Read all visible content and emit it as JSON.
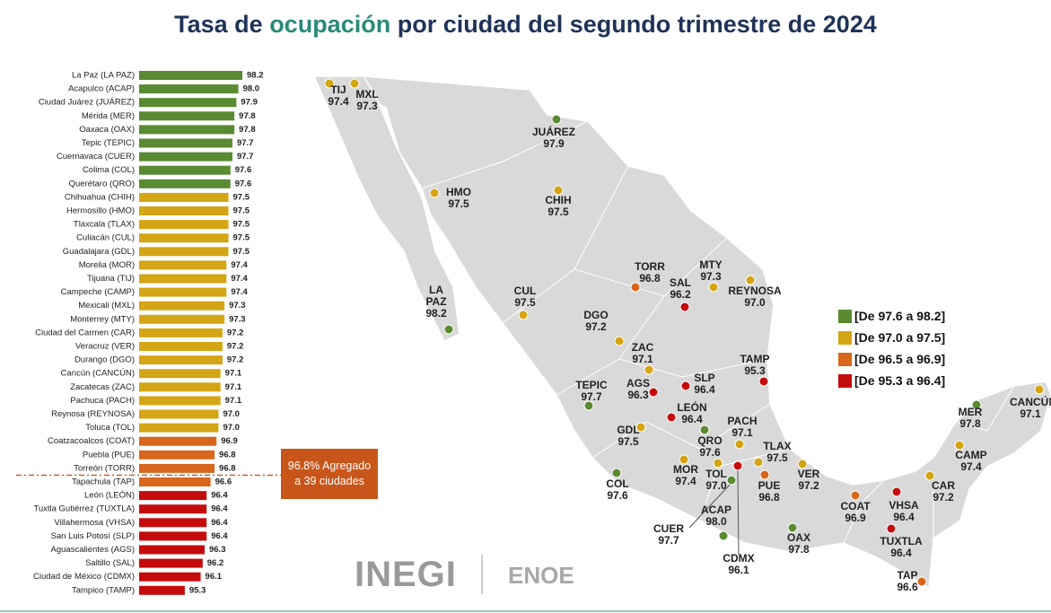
{
  "chart_data": {
    "type": "bar",
    "orientation": "horizontal",
    "title": [
      "Tasa de ",
      "ocupación",
      " por ciudad del segundo trimestre de 2024"
    ],
    "categories": [
      "La Paz (LA PAZ)",
      "Acapulco (ACAP)",
      "Ciudad Juárez (JUÁREZ)",
      "Mérida (MER)",
      "Oaxaca (OAX)",
      "Tepic (TEPIC)",
      "Cuernavaca (CUER)",
      "Colima (COL)",
      "Querétaro (QRO)",
      "Chihuahua (CHIH)",
      "Hermosillo (HMO)",
      "Tlaxcala (TLAX)",
      "Culiacán (CUL)",
      "Guadalajara (GDL)",
      "Morelia (MOR)",
      "Tijuana (TIJ)",
      "Campeche (CAMP)",
      "Mexicali (MXL)",
      "Monterrey (MTY)",
      "Ciudad del Carmen (CAR)",
      "Veracruz (VER)",
      "Durango (DGO)",
      "Cancún (CANCÚN)",
      "Zacatecas (ZAC)",
      "Pachuca (PACH)",
      "Reynosa (REYNOSA)",
      "Toluca (TOL)",
      "Coatzacoalcos (COAT)",
      "Puebla (PUE)",
      "Torreón (TORR)",
      "Tapachula (TAP)",
      "León (LEÓN)",
      "Tuxtla Gutiérrez (TUXTLA)",
      "Villahermosa (VHSA)",
      "San Luis Potosí (SLP)",
      "Aguascalientes (AGS)",
      "Saltillo (SAL)",
      "Ciudad de México (CDMX)",
      "Tampico (TAMP)"
    ],
    "values": [
      98.2,
      98.0,
      97.9,
      97.8,
      97.8,
      97.7,
      97.7,
      97.6,
      97.6,
      97.5,
      97.5,
      97.5,
      97.5,
      97.5,
      97.4,
      97.4,
      97.4,
      97.3,
      97.3,
      97.2,
      97.2,
      97.2,
      97.1,
      97.1,
      97.1,
      97.0,
      97.0,
      96.9,
      96.8,
      96.8,
      96.6,
      96.4,
      96.4,
      96.4,
      96.4,
      96.3,
      96.2,
      96.1,
      95.3
    ],
    "value_labels": [
      "98.2",
      "98.0",
      "97.9",
      "97.8",
      "97.8",
      "97.7",
      "97.7",
      "97.6",
      "97.6",
      "97.5",
      "97.5",
      "97.5",
      "97.5",
      "97.5",
      "97.4",
      "97.4",
      "97.4",
      "97.3",
      "97.3",
      "97.2",
      "97.2",
      "97.2",
      "97.1",
      "97.1",
      "97.1",
      "97.0",
      "97.0",
      "96.9",
      "96.8",
      "96.8",
      "96.6",
      "96.4",
      "96.4",
      "96.4",
      "96.4",
      "96.3",
      "96.2",
      "96.1",
      "95.3"
    ],
    "xlim": [
      93,
      99
    ],
    "legend": [
      {
        "label": "[De 97.6 a 98.2]",
        "min": 97.6,
        "max": 98.2,
        "color": "#5a8a32"
      },
      {
        "label": "[De 97.0 a 97.5]",
        "min": 97.0,
        "max": 97.5,
        "color": "#d4a514"
      },
      {
        "label": "[De 96.5 a 96.9]",
        "min": 96.5,
        "max": 96.9,
        "color": "#d8661c"
      },
      {
        "label": "[De 95.3 a 96.4]",
        "min": 95.3,
        "max": 96.4,
        "color": "#c40c0c"
      }
    ],
    "reference": {
      "value": 96.8,
      "label": "96.8% Agregado a 39 ciudades",
      "color": "#c8561a"
    }
  },
  "map": {
    "cities": [
      {
        "code": "TIJ",
        "value": 97.4,
        "value_label": "97.4"
      },
      {
        "code": "MXL",
        "value": 97.3,
        "value_label": "97.3"
      },
      {
        "code": "JUÁREZ",
        "value": 97.9,
        "value_label": "97.9"
      },
      {
        "code": "HMO",
        "value": 97.5,
        "value_label": "97.5"
      },
      {
        "code": "CHIH",
        "value": 97.5,
        "value_label": "97.5"
      },
      {
        "code": "LA PAZ",
        "value": 98.2,
        "value_label": "98.2"
      },
      {
        "code": "CUL",
        "value": 97.5,
        "value_label": "97.5"
      },
      {
        "code": "TORR",
        "value": 96.8,
        "value_label": "96.8"
      },
      {
        "code": "SAL",
        "value": 96.2,
        "value_label": "96.2"
      },
      {
        "code": "MTY",
        "value": 97.3,
        "value_label": "97.3"
      },
      {
        "code": "REYNOSA",
        "value": 97.0,
        "value_label": "97.0"
      },
      {
        "code": "DGO",
        "value": 97.2,
        "value_label": "97.2"
      },
      {
        "code": "ZAC",
        "value": 97.1,
        "value_label": "97.1"
      },
      {
        "code": "SLP",
        "value": 96.4,
        "value_label": "96.4"
      },
      {
        "code": "AGS",
        "value": 96.3,
        "value_label": "96.3"
      },
      {
        "code": "TAMP",
        "value": 95.3,
        "value_label": "95.3"
      },
      {
        "code": "TEPIC",
        "value": 97.7,
        "value_label": "97.7"
      },
      {
        "code": "LEÓN",
        "value": 96.4,
        "value_label": "96.4"
      },
      {
        "code": "PACH",
        "value": 97.1,
        "value_label": "97.1"
      },
      {
        "code": "QRO",
        "value": 97.6,
        "value_label": "97.6"
      },
      {
        "code": "GDL",
        "value": 97.5,
        "value_label": "97.5"
      },
      {
        "code": "TLAX",
        "value": 97.5,
        "value_label": "97.5"
      },
      {
        "code": "MOR",
        "value": 97.4,
        "value_label": "97.4"
      },
      {
        "code": "TOL",
        "value": 97.0,
        "value_label": "97.0"
      },
      {
        "code": "CDMX",
        "value": 96.1,
        "value_label": "96.1"
      },
      {
        "code": "PUE",
        "value": 96.8,
        "value_label": "96.8"
      },
      {
        "code": "VER",
        "value": 97.2,
        "value_label": "97.2"
      },
      {
        "code": "COL",
        "value": 97.6,
        "value_label": "97.6"
      },
      {
        "code": "ACAP",
        "value": 98.0,
        "value_label": "98.0"
      },
      {
        "code": "CUER",
        "value": 97.7,
        "value_label": "97.7"
      },
      {
        "code": "OAX",
        "value": 97.8,
        "value_label": "97.8"
      },
      {
        "code": "COAT",
        "value": 96.9,
        "value_label": "96.9"
      },
      {
        "code": "VHSA",
        "value": 96.4,
        "value_label": "96.4"
      },
      {
        "code": "TUXTLA",
        "value": 96.4,
        "value_label": "96.4"
      },
      {
        "code": "TAP",
        "value": 96.6,
        "value_label": "96.6"
      },
      {
        "code": "CAR",
        "value": 97.2,
        "value_label": "97.2"
      },
      {
        "code": "CAMP",
        "value": 97.4,
        "value_label": "97.4"
      },
      {
        "code": "MER",
        "value": 97.8,
        "value_label": "97.8"
      },
      {
        "code": "CANCÚN",
        "value": 97.1,
        "value_label": "97.1"
      }
    ]
  },
  "footer": {
    "logo": "INEGI",
    "survey": "ENOE"
  }
}
